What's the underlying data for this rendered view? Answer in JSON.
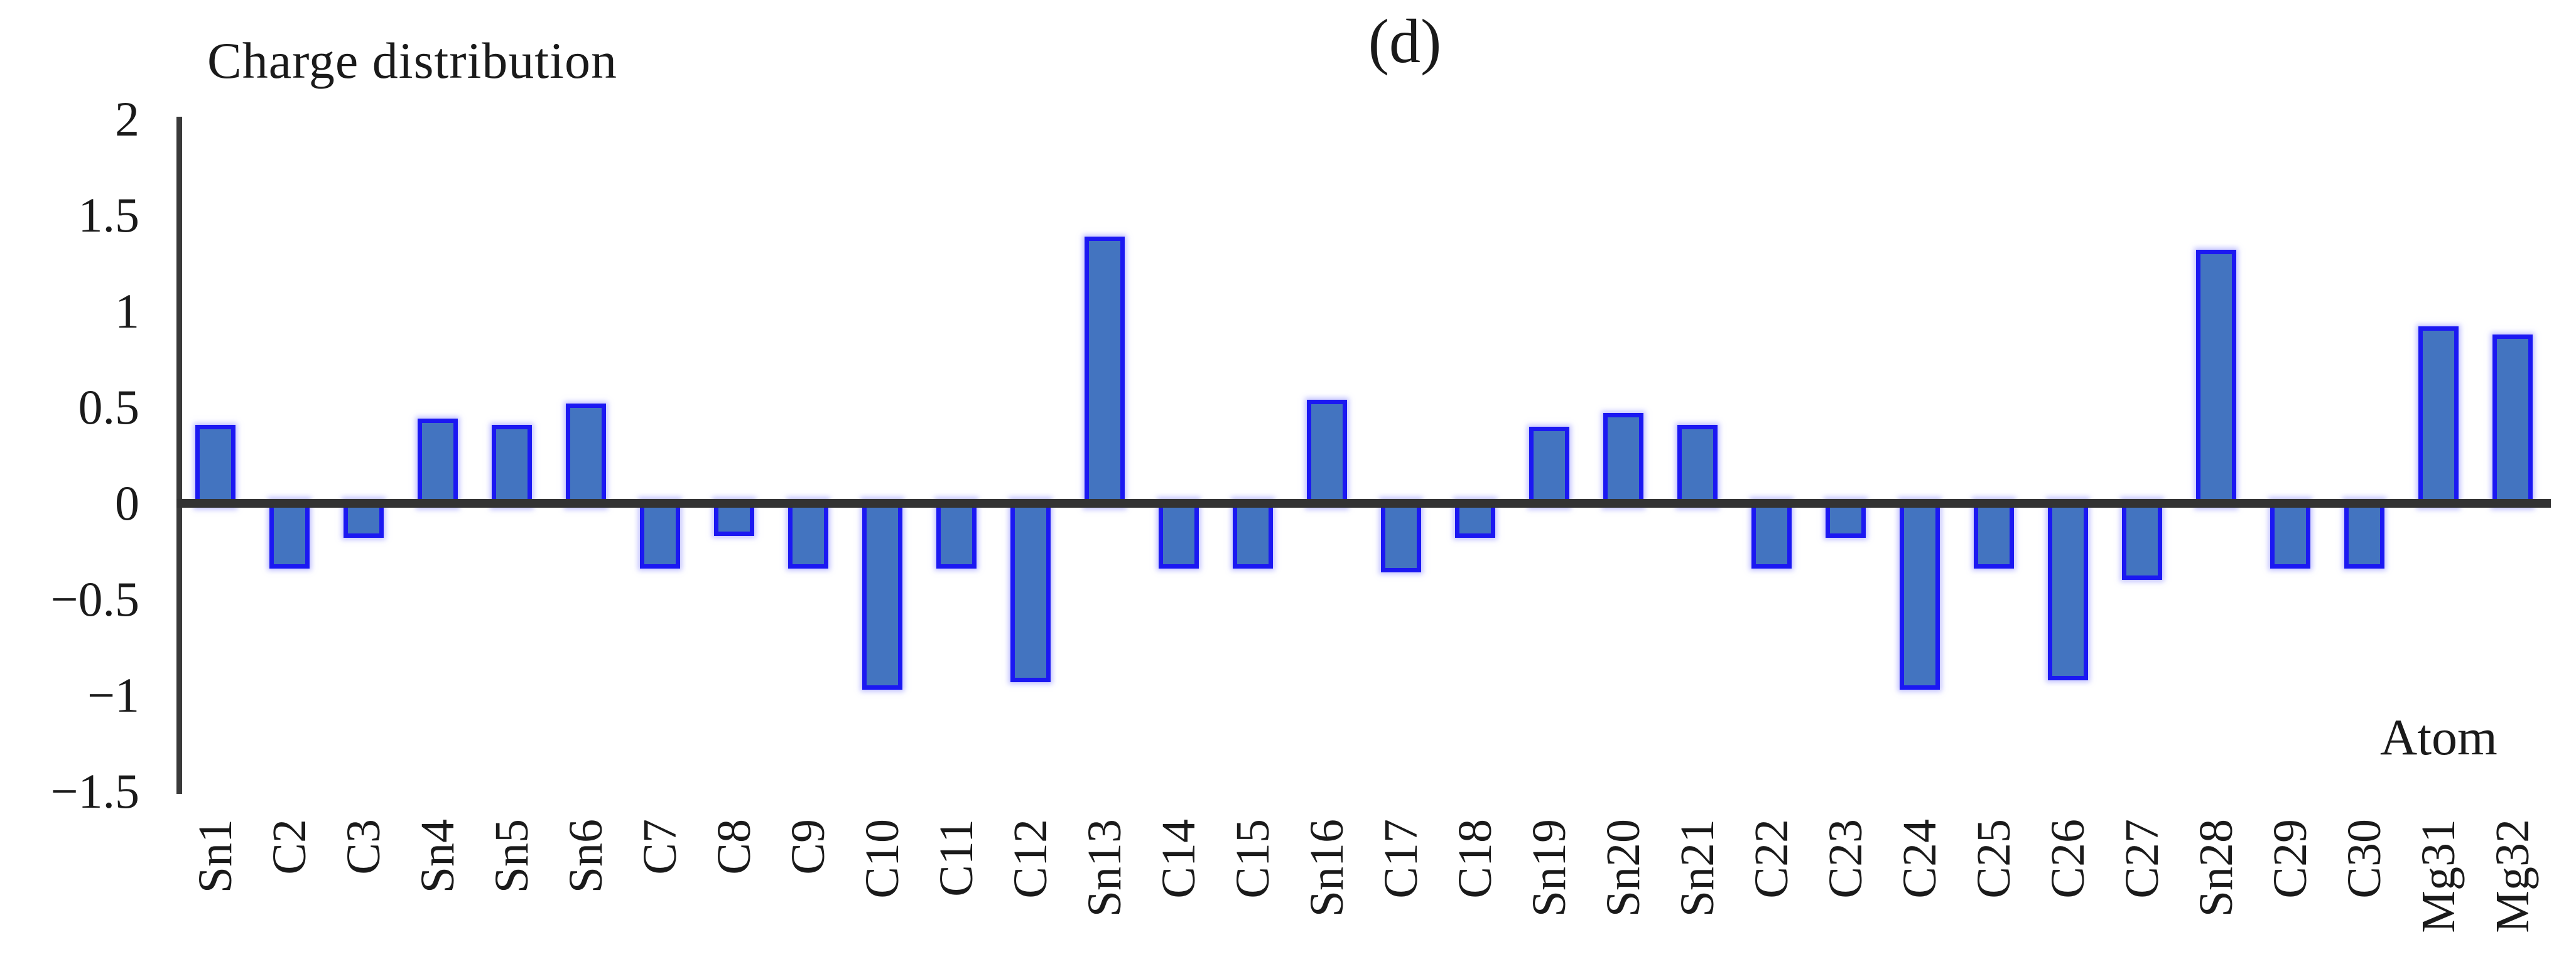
{
  "figure": {
    "panel_label": "(d)",
    "y_axis_title": "Charge distribution",
    "x_axis_title": "Atom"
  },
  "colors": {
    "bar_fill": "#4374C0",
    "bar_border": "#1B18F2",
    "axis_line": "#3A3A3A",
    "zero_line": "#333333",
    "text": "#1A1A1A",
    "background": "#FFFFFF"
  },
  "y_ticks": [
    {
      "label": "2",
      "value": 2
    },
    {
      "label": "1.5",
      "value": 1.5
    },
    {
      "label": "1",
      "value": 1
    },
    {
      "label": "0.5",
      "value": 0.5
    },
    {
      "label": "0",
      "value": 0
    },
    {
      "label": "−0.5",
      "value": -0.5
    },
    {
      "label": "−1",
      "value": -1
    },
    {
      "label": "−1.5",
      "value": -1.5
    }
  ],
  "chart_data": {
    "type": "bar",
    "title": "(d)",
    "xlabel": "Atom",
    "ylabel": "Charge distribution",
    "ylim": [
      -1.5,
      2
    ],
    "grid": false,
    "legend_position": "none",
    "bar_color": "#4374C0",
    "categories": [
      "Sn1",
      "C2",
      "C3",
      "Sn4",
      "Sn5",
      "Sn6",
      "C7",
      "C8",
      "C9",
      "C10",
      "C11",
      "C12",
      "Sn13",
      "C14",
      "C15",
      "Sn16",
      "C17",
      "C18",
      "Sn19",
      "Sn20",
      "Sn21",
      "C22",
      "C23",
      "C24",
      "C25",
      "C26",
      "C27",
      "Sn28",
      "C29",
      "C30",
      "Mg31",
      "Mg32"
    ],
    "values": [
      0.41,
      -0.34,
      -0.18,
      0.44,
      0.41,
      0.52,
      -0.34,
      -0.17,
      -0.34,
      -0.97,
      -0.34,
      -0.93,
      1.39,
      -0.34,
      -0.34,
      0.54,
      -0.36,
      -0.18,
      0.4,
      0.47,
      0.41,
      -0.34,
      -0.18,
      -0.97,
      -0.34,
      -0.92,
      -0.4,
      1.32,
      -0.34,
      -0.34,
      0.92,
      0.88
    ]
  }
}
